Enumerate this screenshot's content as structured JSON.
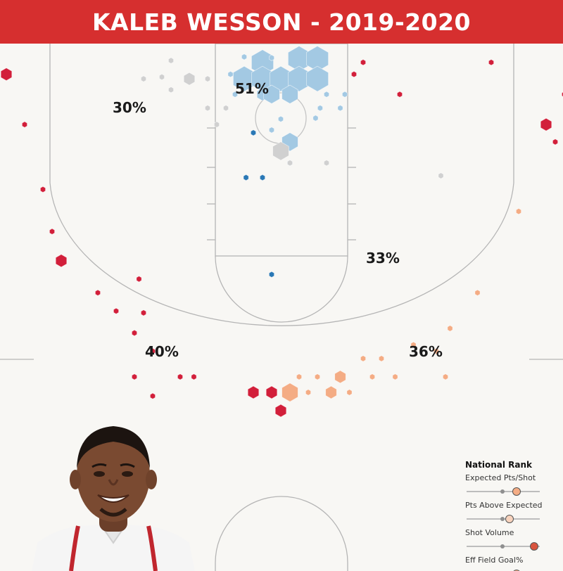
{
  "title": "KALEB WESSON - 2019-2020",
  "colors": {
    "title_bar": "#d62f2f",
    "background": "#f8f7f4",
    "court_lines": "#b5b5b5",
    "paint_hot": "#a3c9e3",
    "paint_dark": "#2a78b5",
    "average": "#d0d0d0",
    "cold": "#d21f3a",
    "warm": "#f4ac84"
  },
  "chart_data": {
    "type": "heatmap",
    "description_units": "court feet; x = feet from basket centerline (negative = left), y = feet from baseline",
    "zone_labels": [
      {
        "label": "51%",
        "zone": "paint"
      },
      {
        "label": "30%",
        "zone": "left-midrange"
      },
      {
        "label": "33%",
        "zone": "right-midrange"
      },
      {
        "label": "40%",
        "zone": "left-three"
      },
      {
        "label": "36%",
        "zone": "right-three"
      }
    ],
    "shots": [
      {
        "x": -2.0,
        "y": 6.1,
        "size": 3,
        "zone": "paint-hot"
      },
      {
        "x": 2.0,
        "y": 6.5,
        "size": 3,
        "zone": "paint-hot"
      },
      {
        "x": 4.0,
        "y": 6.5,
        "size": 3,
        "zone": "paint-hot"
      },
      {
        "x": -4.0,
        "y": 4.3,
        "size": 3,
        "zone": "paint-hot"
      },
      {
        "x": -2.0,
        "y": 4.3,
        "size": 3,
        "zone": "paint-hot"
      },
      {
        "x": 0.0,
        "y": 4.3,
        "size": 3,
        "zone": "paint-hot"
      },
      {
        "x": 2.0,
        "y": 4.3,
        "size": 3,
        "zone": "paint-hot"
      },
      {
        "x": 4.0,
        "y": 4.3,
        "size": 3,
        "zone": "paint-hot"
      },
      {
        "x": -2.0,
        "y": 2.6,
        "size": 1.5,
        "zone": "paint-hot"
      },
      {
        "x": -1.0,
        "y": 2.6,
        "size": 2.2,
        "zone": "paint-hot"
      },
      {
        "x": 1.0,
        "y": 2.6,
        "size": 2.2,
        "zone": "paint-hot"
      },
      {
        "x": 1.0,
        "y": -2.6,
        "size": 2.2,
        "zone": "paint-hot"
      },
      {
        "x": -4.0,
        "y": 6.7,
        "size": 0.7,
        "zone": "paint-hot"
      },
      {
        "x": -1.0,
        "y": 6.6,
        "size": 0.7,
        "zone": "paint-hot"
      },
      {
        "x": -5.5,
        "y": 4.8,
        "size": 0.7,
        "zone": "paint-hot"
      },
      {
        "x": -5.0,
        "y": 2.6,
        "size": 0.7,
        "zone": "paint-hot"
      },
      {
        "x": 5.0,
        "y": 2.6,
        "size": 0.7,
        "zone": "paint-hot"
      },
      {
        "x": 7.0,
        "y": 2.6,
        "size": 0.7,
        "zone": "paint-hot"
      },
      {
        "x": 4.3,
        "y": 1.1,
        "size": 0.7,
        "zone": "paint-hot"
      },
      {
        "x": 6.5,
        "y": 1.1,
        "size": 0.7,
        "zone": "paint-hot"
      },
      {
        "x": 0.0,
        "y": -0.1,
        "size": 0.7,
        "zone": "paint-hot"
      },
      {
        "x": 3.8,
        "y": 0.0,
        "size": 0.7,
        "zone": "paint-hot"
      },
      {
        "x": -1.0,
        "y": -1.3,
        "size": 0.7,
        "zone": "paint-hot"
      },
      {
        "x": 1.0,
        "y": -4.9,
        "size": 0.7,
        "zone": "paint-dark"
      },
      {
        "x": -3.0,
        "y": -1.6,
        "size": 0.7,
        "zone": "paint-dark"
      },
      {
        "x": -3.8,
        "y": -6.5,
        "size": 0.7,
        "zone": "paint-dark"
      },
      {
        "x": -2.0,
        "y": -6.5,
        "size": 0.7,
        "zone": "paint-dark"
      },
      {
        "x": -1.0,
        "y": -17.1,
        "size": 0.7,
        "zone": "paint-dark"
      },
      {
        "x": 0.0,
        "y": -3.6,
        "size": 2.2,
        "zone": "average"
      },
      {
        "x": -10.0,
        "y": 4.3,
        "size": 1.5,
        "zone": "average"
      },
      {
        "x": -12.0,
        "y": 6.3,
        "size": 0.7,
        "zone": "average"
      },
      {
        "x": -13.0,
        "y": 4.5,
        "size": 0.7,
        "zone": "average"
      },
      {
        "x": -12.0,
        "y": 3.1,
        "size": 0.7,
        "zone": "average"
      },
      {
        "x": -15.0,
        "y": 4.3,
        "size": 0.7,
        "zone": "average"
      },
      {
        "x": -8.0,
        "y": 4.3,
        "size": 0.7,
        "zone": "average"
      },
      {
        "x": -8.0,
        "y": 1.1,
        "size": 0.7,
        "zone": "average"
      },
      {
        "x": -6.0,
        "y": 1.1,
        "size": 0.7,
        "zone": "average"
      },
      {
        "x": -7.0,
        "y": -0.7,
        "size": 0.7,
        "zone": "average"
      },
      {
        "x": 1.0,
        "y": -4.9,
        "size": 0.7,
        "zone": "average"
      },
      {
        "x": 5.0,
        "y": -4.9,
        "size": 0.7,
        "zone": "average"
      },
      {
        "x": 17.5,
        "y": -6.3,
        "size": 0.7,
        "zone": "average"
      },
      {
        "x": -30.0,
        "y": 4.8,
        "size": 1.5,
        "zone": "cold"
      },
      {
        "x": -28.0,
        "y": -0.7,
        "size": 0.7,
        "zone": "cold"
      },
      {
        "x": -26.0,
        "y": -7.8,
        "size": 0.7,
        "zone": "cold"
      },
      {
        "x": -25.0,
        "y": -12.4,
        "size": 0.7,
        "zone": "cold"
      },
      {
        "x": -24.0,
        "y": -15.6,
        "size": 1.5,
        "zone": "cold"
      },
      {
        "x": -20.0,
        "y": -19.1,
        "size": 0.7,
        "zone": "cold"
      },
      {
        "x": -18.0,
        "y": -21.1,
        "size": 0.7,
        "zone": "cold"
      },
      {
        "x": -15.5,
        "y": -17.6,
        "size": 0.7,
        "zone": "cold"
      },
      {
        "x": -15.0,
        "y": -21.3,
        "size": 0.7,
        "zone": "cold"
      },
      {
        "x": -16.0,
        "y": -23.5,
        "size": 0.7,
        "zone": "cold"
      },
      {
        "x": -14.0,
        "y": -25.5,
        "size": 0.7,
        "zone": "cold"
      },
      {
        "x": -16.0,
        "y": -28.3,
        "size": 0.7,
        "zone": "cold"
      },
      {
        "x": -14.0,
        "y": -30.4,
        "size": 0.7,
        "zone": "cold"
      },
      {
        "x": -11.0,
        "y": -28.3,
        "size": 0.7,
        "zone": "cold"
      },
      {
        "x": -9.5,
        "y": -28.3,
        "size": 0.7,
        "zone": "cold"
      },
      {
        "x": -3.0,
        "y": -30.0,
        "size": 1.5,
        "zone": "cold"
      },
      {
        "x": -1.0,
        "y": -30.0,
        "size": 1.5,
        "zone": "cold"
      },
      {
        "x": 0.0,
        "y": -32.0,
        "size": 1.5,
        "zone": "cold"
      },
      {
        "x": 9.0,
        "y": 6.1,
        "size": 0.7,
        "zone": "cold"
      },
      {
        "x": 8.0,
        "y": 4.8,
        "size": 0.7,
        "zone": "cold"
      },
      {
        "x": 13.0,
        "y": 2.6,
        "size": 0.7,
        "zone": "cold"
      },
      {
        "x": 23.0,
        "y": 6.1,
        "size": 0.7,
        "zone": "cold"
      },
      {
        "x": 31.0,
        "y": 2.6,
        "size": 0.7,
        "zone": "cold"
      },
      {
        "x": 29.0,
        "y": -0.7,
        "size": 1.5,
        "zone": "cold"
      },
      {
        "x": 30.0,
        "y": -2.6,
        "size": 0.7,
        "zone": "cold"
      },
      {
        "x": 26.0,
        "y": -10.2,
        "size": 0.7,
        "zone": "warm"
      },
      {
        "x": 21.5,
        "y": -19.1,
        "size": 0.7,
        "zone": "warm"
      },
      {
        "x": 18.5,
        "y": -23.0,
        "size": 0.7,
        "zone": "warm"
      },
      {
        "x": 14.5,
        "y": -24.8,
        "size": 0.7,
        "zone": "warm"
      },
      {
        "x": 11.0,
        "y": -26.3,
        "size": 0.7,
        "zone": "warm"
      },
      {
        "x": 9.0,
        "y": -26.3,
        "size": 0.7,
        "zone": "warm"
      },
      {
        "x": 12.5,
        "y": -28.3,
        "size": 0.7,
        "zone": "warm"
      },
      {
        "x": 10.0,
        "y": -28.3,
        "size": 0.7,
        "zone": "warm"
      },
      {
        "x": 18.0,
        "y": -28.3,
        "size": 0.7,
        "zone": "warm"
      },
      {
        "x": 17.0,
        "y": -25.5,
        "size": 0.7,
        "zone": "warm"
      },
      {
        "x": 6.5,
        "y": -28.3,
        "size": 1.5,
        "zone": "warm"
      },
      {
        "x": 4.0,
        "y": -28.3,
        "size": 0.7,
        "zone": "warm"
      },
      {
        "x": 2.0,
        "y": -28.3,
        "size": 0.7,
        "zone": "warm"
      },
      {
        "x": 5.5,
        "y": -30.0,
        "size": 1.5,
        "zone": "warm"
      },
      {
        "x": 1.0,
        "y": -30.0,
        "size": 2.2,
        "zone": "warm"
      },
      {
        "x": 3.0,
        "y": -30.0,
        "size": 0.7,
        "zone": "warm"
      },
      {
        "x": 7.5,
        "y": -30.0,
        "size": 0.7,
        "zone": "warm"
      }
    ]
  },
  "rank_panel": {
    "title": "National Rank",
    "metrics": [
      {
        "label": "Expected Pts/Shot",
        "level": 0.68,
        "color": "#f4ac84"
      },
      {
        "label": "Pts Above Expected",
        "level": 0.59,
        "color": "#f8d3bd"
      },
      {
        "label": "Shot Volume",
        "level": 0.92,
        "color": "#d9543e"
      },
      {
        "label": "Eff Field Goal%",
        "level": 0.68,
        "color": "#f4ac84"
      }
    ]
  },
  "player_photo": {
    "icon": "player-headshot"
  }
}
